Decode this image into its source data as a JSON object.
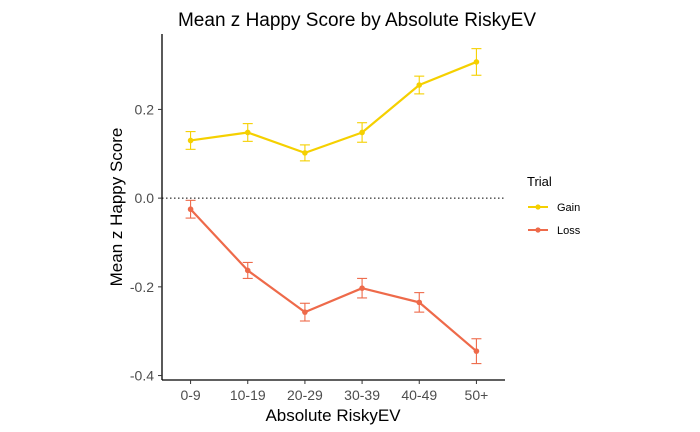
{
  "chart_data": {
    "type": "line",
    "title": "Mean z Happy Score by Absolute RiskyEV",
    "xlabel": "Absolute RiskyEV",
    "ylabel": "Mean z Happy Score",
    "categories": [
      "0-9",
      "10-19",
      "20-29",
      "30-39",
      "40-49",
      "50+"
    ],
    "ylim": [
      -0.41,
      0.37
    ],
    "yticks": [
      -0.4,
      -0.2,
      0.0,
      0.2
    ],
    "ytick_labels": [
      "-0.4",
      "-0.2",
      "0.0",
      "0.2"
    ],
    "reference_line": 0,
    "grid": false,
    "legend": {
      "title": "Trial",
      "position": "right"
    },
    "series": [
      {
        "name": "Gain",
        "color": "#F5D000",
        "values": [
          0.13,
          0.148,
          0.102,
          0.148,
          0.255,
          0.307
        ],
        "errors": [
          0.02,
          0.02,
          0.018,
          0.022,
          0.02,
          0.03
        ]
      },
      {
        "name": "Loss",
        "color": "#EE6A4A",
        "values": [
          -0.025,
          -0.163,
          -0.257,
          -0.203,
          -0.235,
          -0.345
        ],
        "errors": [
          0.02,
          0.018,
          0.02,
          0.022,
          0.022,
          0.028
        ]
      }
    ]
  }
}
